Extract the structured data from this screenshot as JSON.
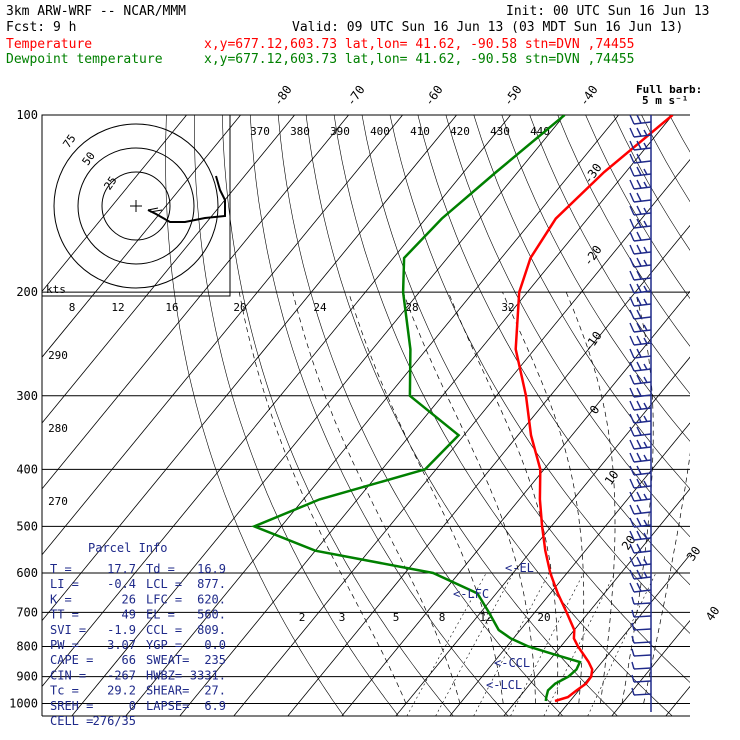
{
  "header": {
    "model": "3km ARW-WRF -- NCAR/MMM",
    "init": "Init: 00 UTC Sun 16 Jun 13",
    "fcst": "Fcst:    9 h",
    "valid": "Valid: 09 UTC Sun 16 Jun 13 (03 MDT Sun 16 Jun 13)",
    "temp_label": "Temperature",
    "temp_loc": "x,y=677.12,603.73   lat,lon= 41.62, -90.58  stn=DVN ,74455",
    "dew_label": "Dewpoint temperature",
    "dew_loc": "x,y=677.12,603.73   lat,lon= 41.62, -90.58  stn=DVN ,74455",
    "colors": {
      "temperature": "#ff0000",
      "dewpoint": "#008000",
      "info": "#1f2a8a"
    }
  },
  "hodograph": {
    "rings": [
      "25",
      "50",
      "75"
    ],
    "units": "kts"
  },
  "barb_legend": {
    "title": "Full barb:",
    "value": "5 m s⁻¹"
  },
  "parcel": {
    "title": "Parcel Info",
    "rows": [
      [
        "T  =",
        "17.7",
        "Td =",
        "16.9"
      ],
      [
        "LI =",
        "-0.4",
        "LCL =",
        "877."
      ],
      [
        "K  =",
        "26",
        "LFC =",
        "620."
      ],
      [
        "TT =",
        "49",
        "EL  =",
        "560."
      ],
      [
        "SVI =",
        "-1.9",
        "CCL =",
        "809."
      ],
      [
        "PW =",
        "3.07",
        "YGP =",
        "0.0"
      ],
      [
        "CAPE =",
        "66",
        "SWEAT=",
        "235"
      ],
      [
        "CIN =",
        "-267",
        "HWBZ=",
        "3331."
      ],
      [
        "Tc =",
        "29.2",
        "SHEAR=",
        "27."
      ],
      [
        "SREH =",
        "0",
        "LAPSE=",
        "6.9"
      ],
      [
        "CELL =",
        "276/35",
        "",
        ""
      ]
    ]
  },
  "levels": {
    "el": "<-EL",
    "lfc": "<-LFC",
    "ccl": "<-CCL",
    "lcl": "<-LCL"
  },
  "chart_data": {
    "type": "line",
    "pressure_ticks": [
      "100",
      "200",
      "300",
      "400",
      "500",
      "600",
      "700",
      "800",
      "900",
      "1000"
    ],
    "isotherm_labels": [
      "-80",
      "-70",
      "-60",
      "-50",
      "-40",
      "-30",
      "-20",
      "-10",
      "0",
      "10",
      "20",
      "30",
      "40"
    ],
    "theta_labels": [
      "370",
      "380",
      "390",
      "400",
      "410",
      "420",
      "430",
      "440"
    ],
    "theta_side_labels": [
      "290",
      "280",
      "270"
    ],
    "hodo_speed_labels": [
      "8",
      "12",
      "16",
      "20",
      "24",
      "28",
      "32"
    ],
    "mixing_ratio_labels": [
      "2",
      "3",
      "5",
      "8",
      "12",
      "20"
    ],
    "series": [
      {
        "name": "Temperature",
        "unit": "C",
        "p": [
          990,
          975,
          950,
          925,
          900,
          875,
          850,
          825,
          800,
          775,
          750,
          700,
          650,
          600,
          550,
          500,
          450,
          400,
          350,
          300,
          250,
          200,
          175,
          150,
          125,
          100
        ],
        "t": [
          17.2,
          19.0,
          19.6,
          20.3,
          20.2,
          19.3,
          17.5,
          15.4,
          13.2,
          11.2,
          10.0,
          5.9,
          1.4,
          -3.1,
          -7.4,
          -11.7,
          -16.2,
          -20.7,
          -27.6,
          -34.5,
          -43.5,
          -51.5,
          -54.6,
          -55.9,
          -54.0,
          -50.0
        ]
      },
      {
        "name": "Dewpoint temperature",
        "unit": "C",
        "p": [
          990,
          975,
          950,
          925,
          900,
          875,
          850,
          825,
          800,
          775,
          750,
          700,
          650,
          600,
          550,
          500,
          450,
          400,
          350,
          300,
          250,
          200,
          175,
          150,
          125,
          100
        ],
        "t": [
          15.5,
          15.0,
          14.3,
          14.6,
          16.0,
          16.4,
          15.9,
          10.0,
          4.0,
          -0.5,
          -4.0,
          -8.5,
          -13.5,
          -24.8,
          -50.0,
          -65.0,
          -57.0,
          -42.0,
          -41.0,
          -56.0,
          -63.0,
          -73.0,
          -78.0,
          -77.0,
          -74.0,
          -70.0
        ]
      }
    ],
    "wind_barb_levels": 46
  }
}
